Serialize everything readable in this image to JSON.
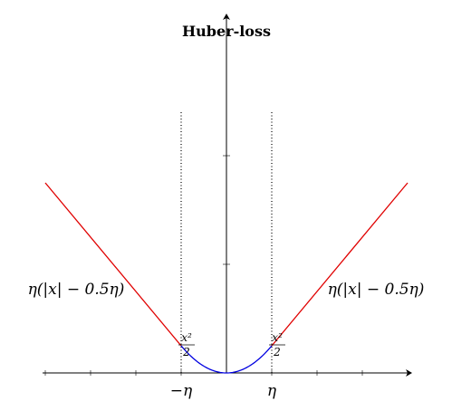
{
  "chart_data": {
    "type": "line",
    "title": "Huber-loss",
    "xlabel": "",
    "ylabel": "",
    "eta": 1,
    "xlim": [
      -4,
      4
    ],
    "ylim": [
      0,
      6.5
    ],
    "grid": false,
    "legend": "none",
    "x_tick_labels": [
      {
        "x": -1,
        "label": "−η"
      },
      {
        "x": 1,
        "label": "η"
      }
    ],
    "series": [
      {
        "segment": "left-linear",
        "color": "#e00000",
        "formula": "η(|x| − 0.5η)",
        "x": [
          -4,
          -1
        ],
        "y": [
          3.5,
          0.5
        ]
      },
      {
        "segment": "quadratic",
        "color": "#0000e0",
        "formula": "x²/2",
        "x": [
          -1,
          -0.5,
          0,
          0.5,
          1
        ],
        "y": [
          0.5,
          0.125,
          0,
          0.125,
          0.5
        ]
      },
      {
        "segment": "right-linear",
        "color": "#e00000",
        "formula": "η(|x| − 0.5η)",
        "x": [
          1,
          4
        ],
        "y": [
          0.5,
          3.5
        ]
      }
    ],
    "annotations": {
      "left_formula": "η(|x| − 0.5η)",
      "right_formula": "η(|x| − 0.5η)",
      "quad_num": "x²",
      "quad_den": "2"
    },
    "colors": {
      "linear": "#e00000",
      "quadratic": "#0000e0",
      "axis": "#000000"
    }
  }
}
